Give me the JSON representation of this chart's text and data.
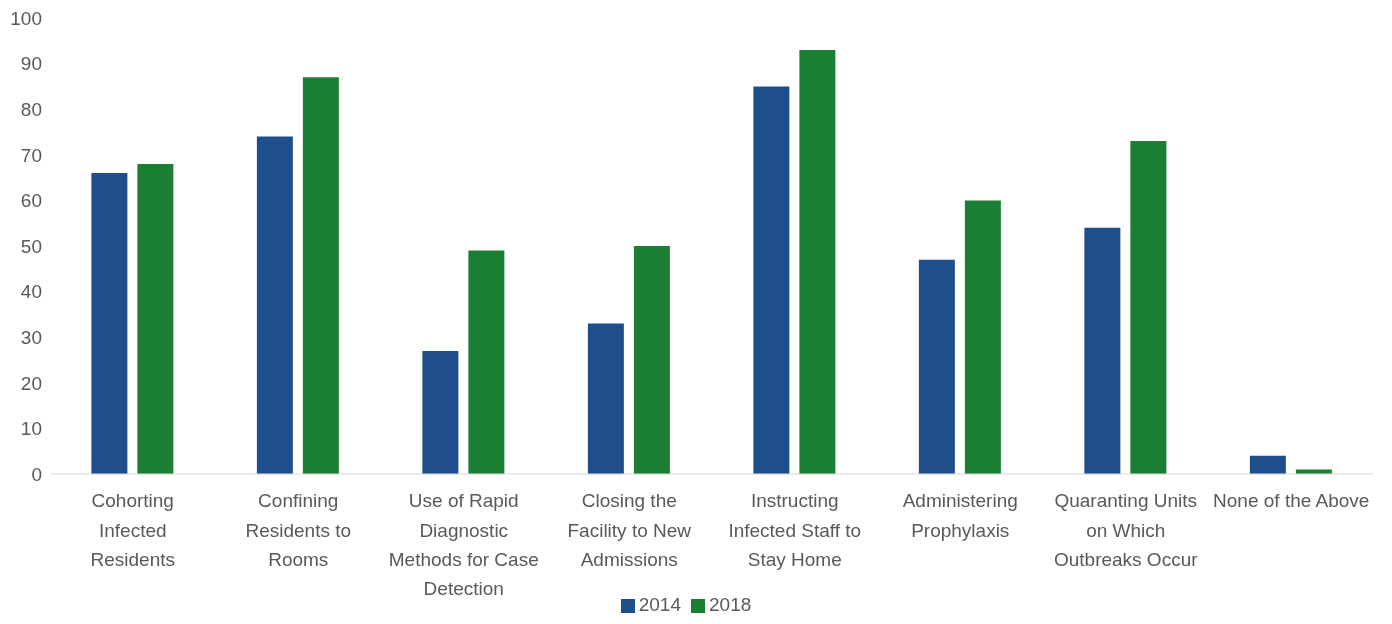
{
  "chart_data": {
    "type": "bar",
    "categories": [
      "Cohorting Infected Residents",
      "Confining Residents to Rooms",
      "Use of Rapid Diagnostic Methods for Case Detection",
      "Closing the Facility to New Admissions",
      "Instructing Infected Staff to Stay Home",
      "Administering Prophylaxis",
      "Quaranting Units on Which Outbreaks Occur",
      "None of the Above"
    ],
    "series": [
      {
        "name": "2014",
        "color": "#1f4e8c",
        "values": [
          66,
          74,
          27,
          33,
          85,
          47,
          54,
          4
        ]
      },
      {
        "name": "2018",
        "color": "#1a7f33",
        "values": [
          68,
          87,
          49,
          50,
          93,
          60,
          73,
          1
        ]
      }
    ],
    "ylim": [
      0,
      100
    ],
    "yticks": [
      0,
      10,
      20,
      30,
      40,
      50,
      60,
      70,
      80,
      90,
      100
    ],
    "grid": false,
    "legend": "bottom"
  }
}
